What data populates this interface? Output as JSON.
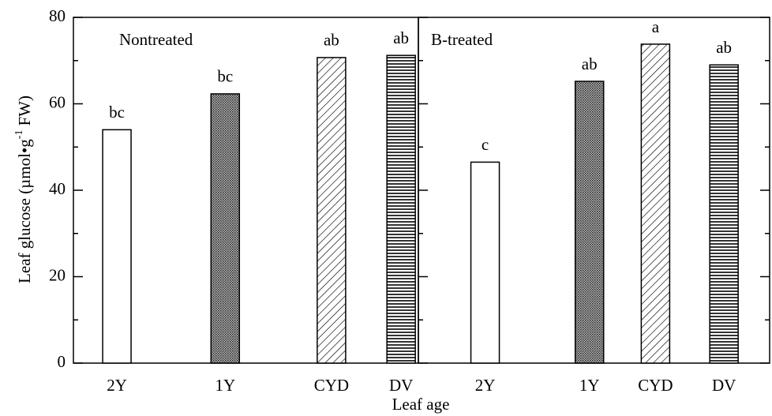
{
  "chart_data": [
    {
      "type": "bar",
      "title": "Nontreated",
      "categories": [
        "2Y",
        "1Y",
        "CYD",
        "DV"
      ],
      "values": [
        54,
        62.3,
        70.7,
        71.2
      ],
      "annotations": [
        "bc",
        "bc",
        "ab",
        "ab"
      ],
      "patterns": [
        "none",
        "dots",
        "diagonal",
        "horizontal"
      ],
      "ylim": [
        0,
        80
      ],
      "yticks": [
        0,
        20,
        40,
        60,
        80
      ],
      "yticks_minor": [
        10,
        30,
        50,
        70
      ],
      "ylabel": "Leaf glucose (µmol•g",
      "ylabel_sup": "-1",
      "ylabel_end": "FW)",
      "xlabel": "Leaf age"
    },
    {
      "type": "bar",
      "title": "B-treated",
      "categories": [
        "2Y",
        "1Y",
        "CYD",
        "DV"
      ],
      "values": [
        46.5,
        65.2,
        73.8,
        69
      ],
      "annotations": [
        "c",
        "ab",
        "a",
        "ab"
      ],
      "patterns": [
        "none",
        "dots",
        "diagonal",
        "horizontal"
      ],
      "ylim": [
        0,
        80
      ],
      "yticks": [
        0,
        20,
        40,
        60,
        80
      ],
      "yticks_minor": [
        10,
        30,
        50,
        70
      ]
    }
  ]
}
